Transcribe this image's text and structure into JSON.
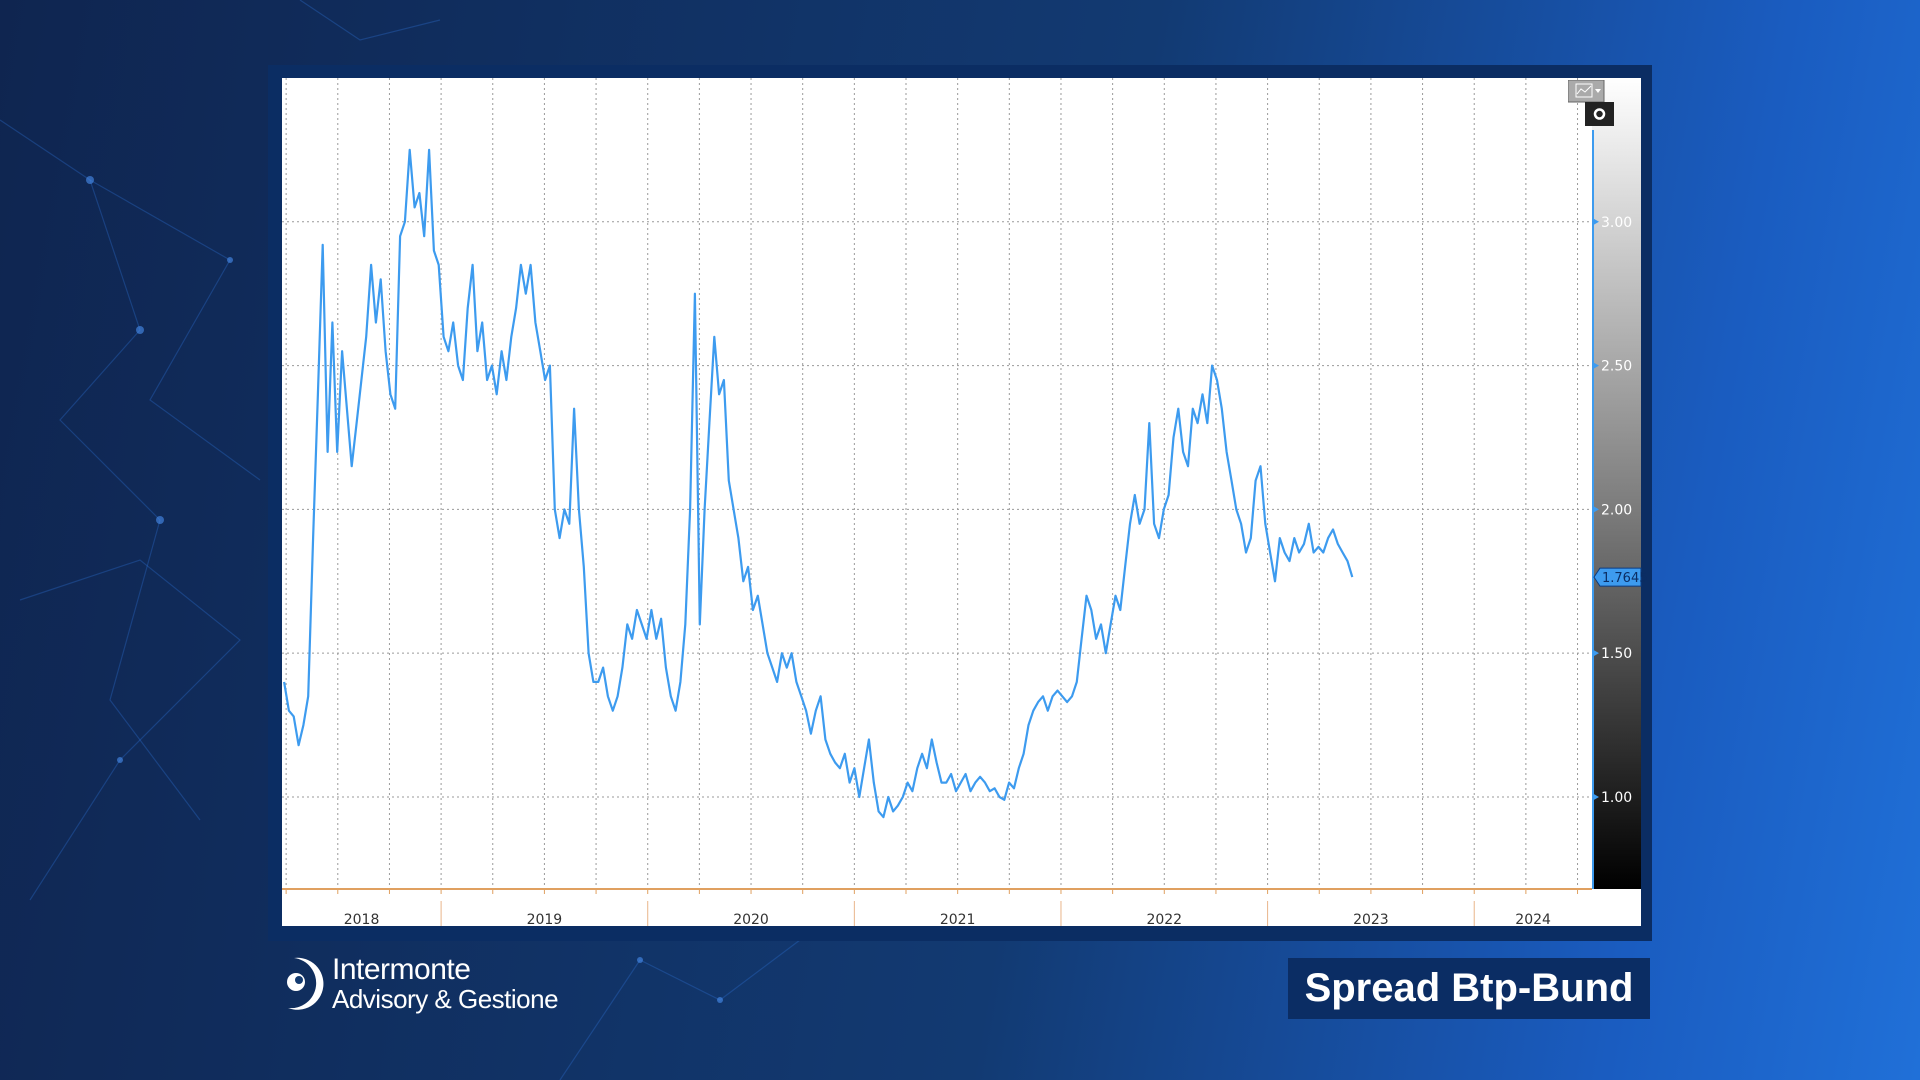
{
  "title": "Spread Btp-Bund",
  "logo": {
    "name": "Intermonte",
    "subtitle": "Advisory & Gestione"
  },
  "colors": {
    "line": "#3d9bef",
    "frame": "#0b2d63",
    "axis_orange": "#e0a060"
  },
  "last_value_label": "1.7645",
  "chart_data": {
    "type": "line",
    "title": "Spread Btp-Bund",
    "xlabel": "",
    "ylabel": "",
    "x_ticks": [
      "2018",
      "2019",
      "2020",
      "2021",
      "2022",
      "2023",
      "2024"
    ],
    "y_ticks": [
      "1.00",
      "1.50",
      "2.00",
      "2.50",
      "3.00"
    ],
    "y_tick_values": [
      1.0,
      1.5,
      2.0,
      2.5,
      3.0
    ],
    "xlim": [
      2018.23,
      2024.57
    ],
    "ylim": [
      0.68,
      3.5
    ],
    "grid": true,
    "axis_position": "right",
    "series": [
      {
        "name": "Spread Btp-Bund",
        "x_start": 2018.24,
        "x_end": 2023.41,
        "values": [
          1.4,
          1.3,
          1.28,
          1.18,
          1.25,
          1.35,
          1.9,
          2.4,
          2.92,
          2.2,
          2.65,
          2.2,
          2.55,
          2.35,
          2.15,
          2.3,
          2.45,
          2.6,
          2.85,
          2.65,
          2.8,
          2.55,
          2.4,
          2.35,
          2.95,
          3.0,
          3.25,
          3.05,
          3.1,
          2.95,
          3.25,
          2.9,
          2.85,
          2.6,
          2.55,
          2.65,
          2.5,
          2.45,
          2.7,
          2.85,
          2.55,
          2.65,
          2.45,
          2.5,
          2.4,
          2.55,
          2.45,
          2.6,
          2.7,
          2.85,
          2.75,
          2.85,
          2.65,
          2.55,
          2.45,
          2.5,
          2.0,
          1.9,
          2.0,
          1.95,
          2.35,
          2.0,
          1.8,
          1.5,
          1.4,
          1.4,
          1.45,
          1.35,
          1.3,
          1.35,
          1.45,
          1.6,
          1.55,
          1.65,
          1.6,
          1.55,
          1.65,
          1.55,
          1.62,
          1.45,
          1.35,
          1.3,
          1.4,
          1.6,
          2.0,
          2.75,
          1.6,
          2.0,
          2.3,
          2.6,
          2.4,
          2.45,
          2.1,
          2.0,
          1.9,
          1.75,
          1.8,
          1.65,
          1.7,
          1.6,
          1.5,
          1.45,
          1.4,
          1.5,
          1.45,
          1.5,
          1.4,
          1.35,
          1.3,
          1.22,
          1.3,
          1.35,
          1.2,
          1.15,
          1.12,
          1.1,
          1.15,
          1.05,
          1.1,
          1.0,
          1.1,
          1.2,
          1.05,
          0.95,
          0.93,
          1.0,
          0.95,
          0.97,
          1.0,
          1.05,
          1.02,
          1.1,
          1.15,
          1.1,
          1.2,
          1.12,
          1.05,
          1.05,
          1.08,
          1.02,
          1.05,
          1.08,
          1.02,
          1.05,
          1.07,
          1.05,
          1.02,
          1.03,
          1.0,
          0.99,
          1.05,
          1.03,
          1.1,
          1.15,
          1.25,
          1.3,
          1.33,
          1.35,
          1.3,
          1.35,
          1.37,
          1.35,
          1.33,
          1.35,
          1.4,
          1.55,
          1.7,
          1.65,
          1.55,
          1.6,
          1.5,
          1.6,
          1.7,
          1.65,
          1.8,
          1.95,
          2.05,
          1.95,
          2.0,
          2.3,
          1.95,
          1.9,
          2.0,
          2.05,
          2.25,
          2.35,
          2.2,
          2.15,
          2.35,
          2.3,
          2.4,
          2.3,
          2.5,
          2.45,
          2.35,
          2.2,
          2.1,
          2.0,
          1.95,
          1.85,
          1.9,
          2.1,
          2.15,
          1.95,
          1.85,
          1.75,
          1.9,
          1.85,
          1.82,
          1.9,
          1.85,
          1.88,
          1.95,
          1.85,
          1.87,
          1.85,
          1.9,
          1.93,
          1.88,
          1.85,
          1.82,
          1.7645
        ]
      }
    ]
  }
}
